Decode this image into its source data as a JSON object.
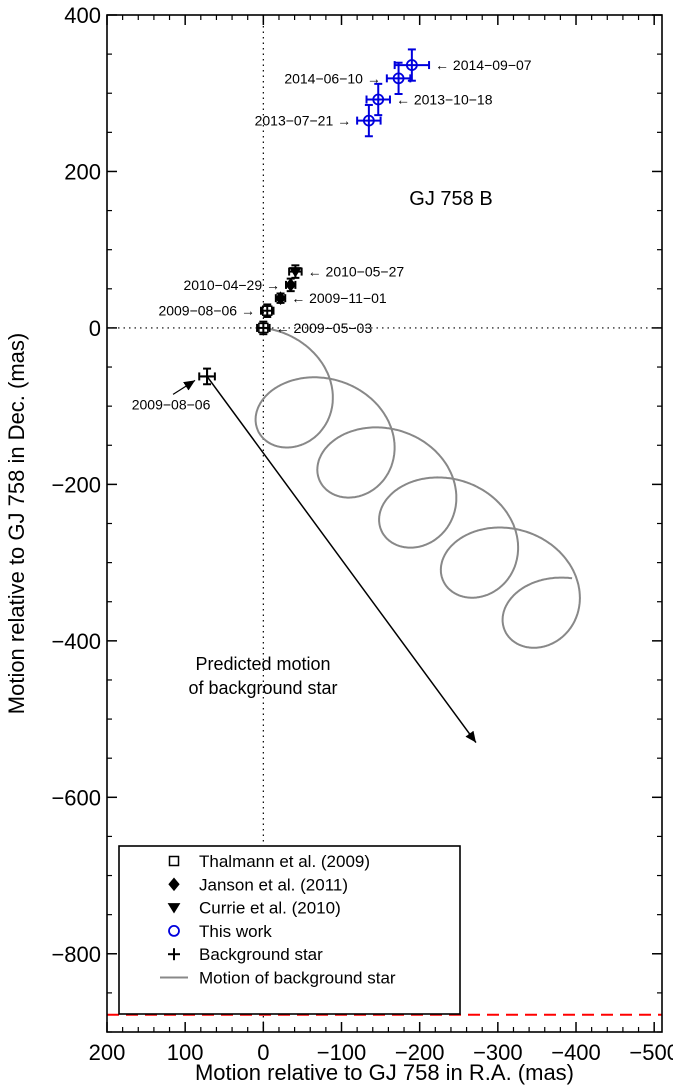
{
  "chart_data": {
    "type": "scatter",
    "xlabel": "Motion relative to GJ 758 in R.A. (mas)",
    "ylabel": "Motion relative to GJ 758 in Dec. (mas)",
    "xlim": [
      200,
      -510
    ],
    "ylim": [
      -900,
      400
    ],
    "x_ticks": [
      200,
      100,
      0,
      -100,
      -200,
      -300,
      -400,
      -500
    ],
    "x_tick_labels": [
      "200",
      "100",
      "0",
      "−100",
      "−200",
      "−300",
      "−400",
      "−500"
    ],
    "y_ticks": [
      400,
      200,
      0,
      -200,
      -400,
      -600,
      -800
    ],
    "y_tick_labels": [
      "400",
      "200",
      "0",
      "−200",
      "−400",
      "−600",
      "−800"
    ],
    "grid": false,
    "legend_position": "bottom-left",
    "object_label": "GJ 758 B",
    "prediction_label": [
      "Predicted motion",
      "of background star"
    ],
    "dec_limit_line": -878,
    "series": [
      {
        "name": "Thalmann et al. (2009)",
        "marker": "square",
        "color": "#000000",
        "points": [
          {
            "x": 0,
            "y": 0,
            "xerr": 8,
            "yerr": 8,
            "date": "2009−05−03",
            "label_side": "right"
          },
          {
            "x": -5,
            "y": 22,
            "xerr": 8,
            "yerr": 8,
            "date": "2009−08−06",
            "label_side": "left"
          }
        ]
      },
      {
        "name": "Janson et al. (2011)",
        "marker": "diamond",
        "color": "#000000",
        "points": [
          {
            "x": -22,
            "y": 38,
            "xerr": 6,
            "yerr": 6,
            "date": "2009−11−01",
            "label_side": "right"
          },
          {
            "x": -35,
            "y": 55,
            "xerr": 6,
            "yerr": 8,
            "date": "2010−04−29",
            "label_side": "left"
          }
        ]
      },
      {
        "name": "Currie et al. (2010)",
        "marker": "triangle-down",
        "color": "#000000",
        "points": [
          {
            "x": -41,
            "y": 72,
            "xerr": 8,
            "yerr": 8,
            "date": "2010−05−27",
            "label_side": "right"
          }
        ]
      },
      {
        "name": "This work",
        "marker": "circle",
        "color": "#0000dd",
        "points": [
          {
            "x": -135,
            "y": 265,
            "xerr": 15,
            "yerr": 20,
            "date": "2013−07−21",
            "label_side": "left"
          },
          {
            "x": -147,
            "y": 292,
            "xerr": 15,
            "yerr": 20,
            "date": "2013−10−18",
            "label_side": "right"
          },
          {
            "x": -173,
            "y": 319,
            "xerr": 15,
            "yerr": 20,
            "date": "2014−06−10",
            "label_side": "left"
          },
          {
            "x": -190,
            "y": 336,
            "xerr": 22,
            "yerr": 20,
            "date": "2014−09−07",
            "label_side": "right"
          }
        ]
      },
      {
        "name": "Background star",
        "marker": "plus",
        "color": "#000000",
        "points": [
          {
            "x": 72,
            "y": -62,
            "xerr": 10,
            "yerr": 10,
            "date": "2009−08−06",
            "label_side": "below-left"
          }
        ]
      },
      {
        "name": "Motion of background star",
        "marker": "line",
        "color": "#888888",
        "segment_color": "#00e5ee"
      }
    ],
    "predicted_arrow": {
      "from": [
        72,
        -62
      ],
      "to": [
        -272,
        -530
      ]
    },
    "motion_track": {
      "a": -79,
      "b": -64,
      "loops": 5,
      "rx": 68,
      "ry": 60,
      "cyan_from": -530
    }
  }
}
